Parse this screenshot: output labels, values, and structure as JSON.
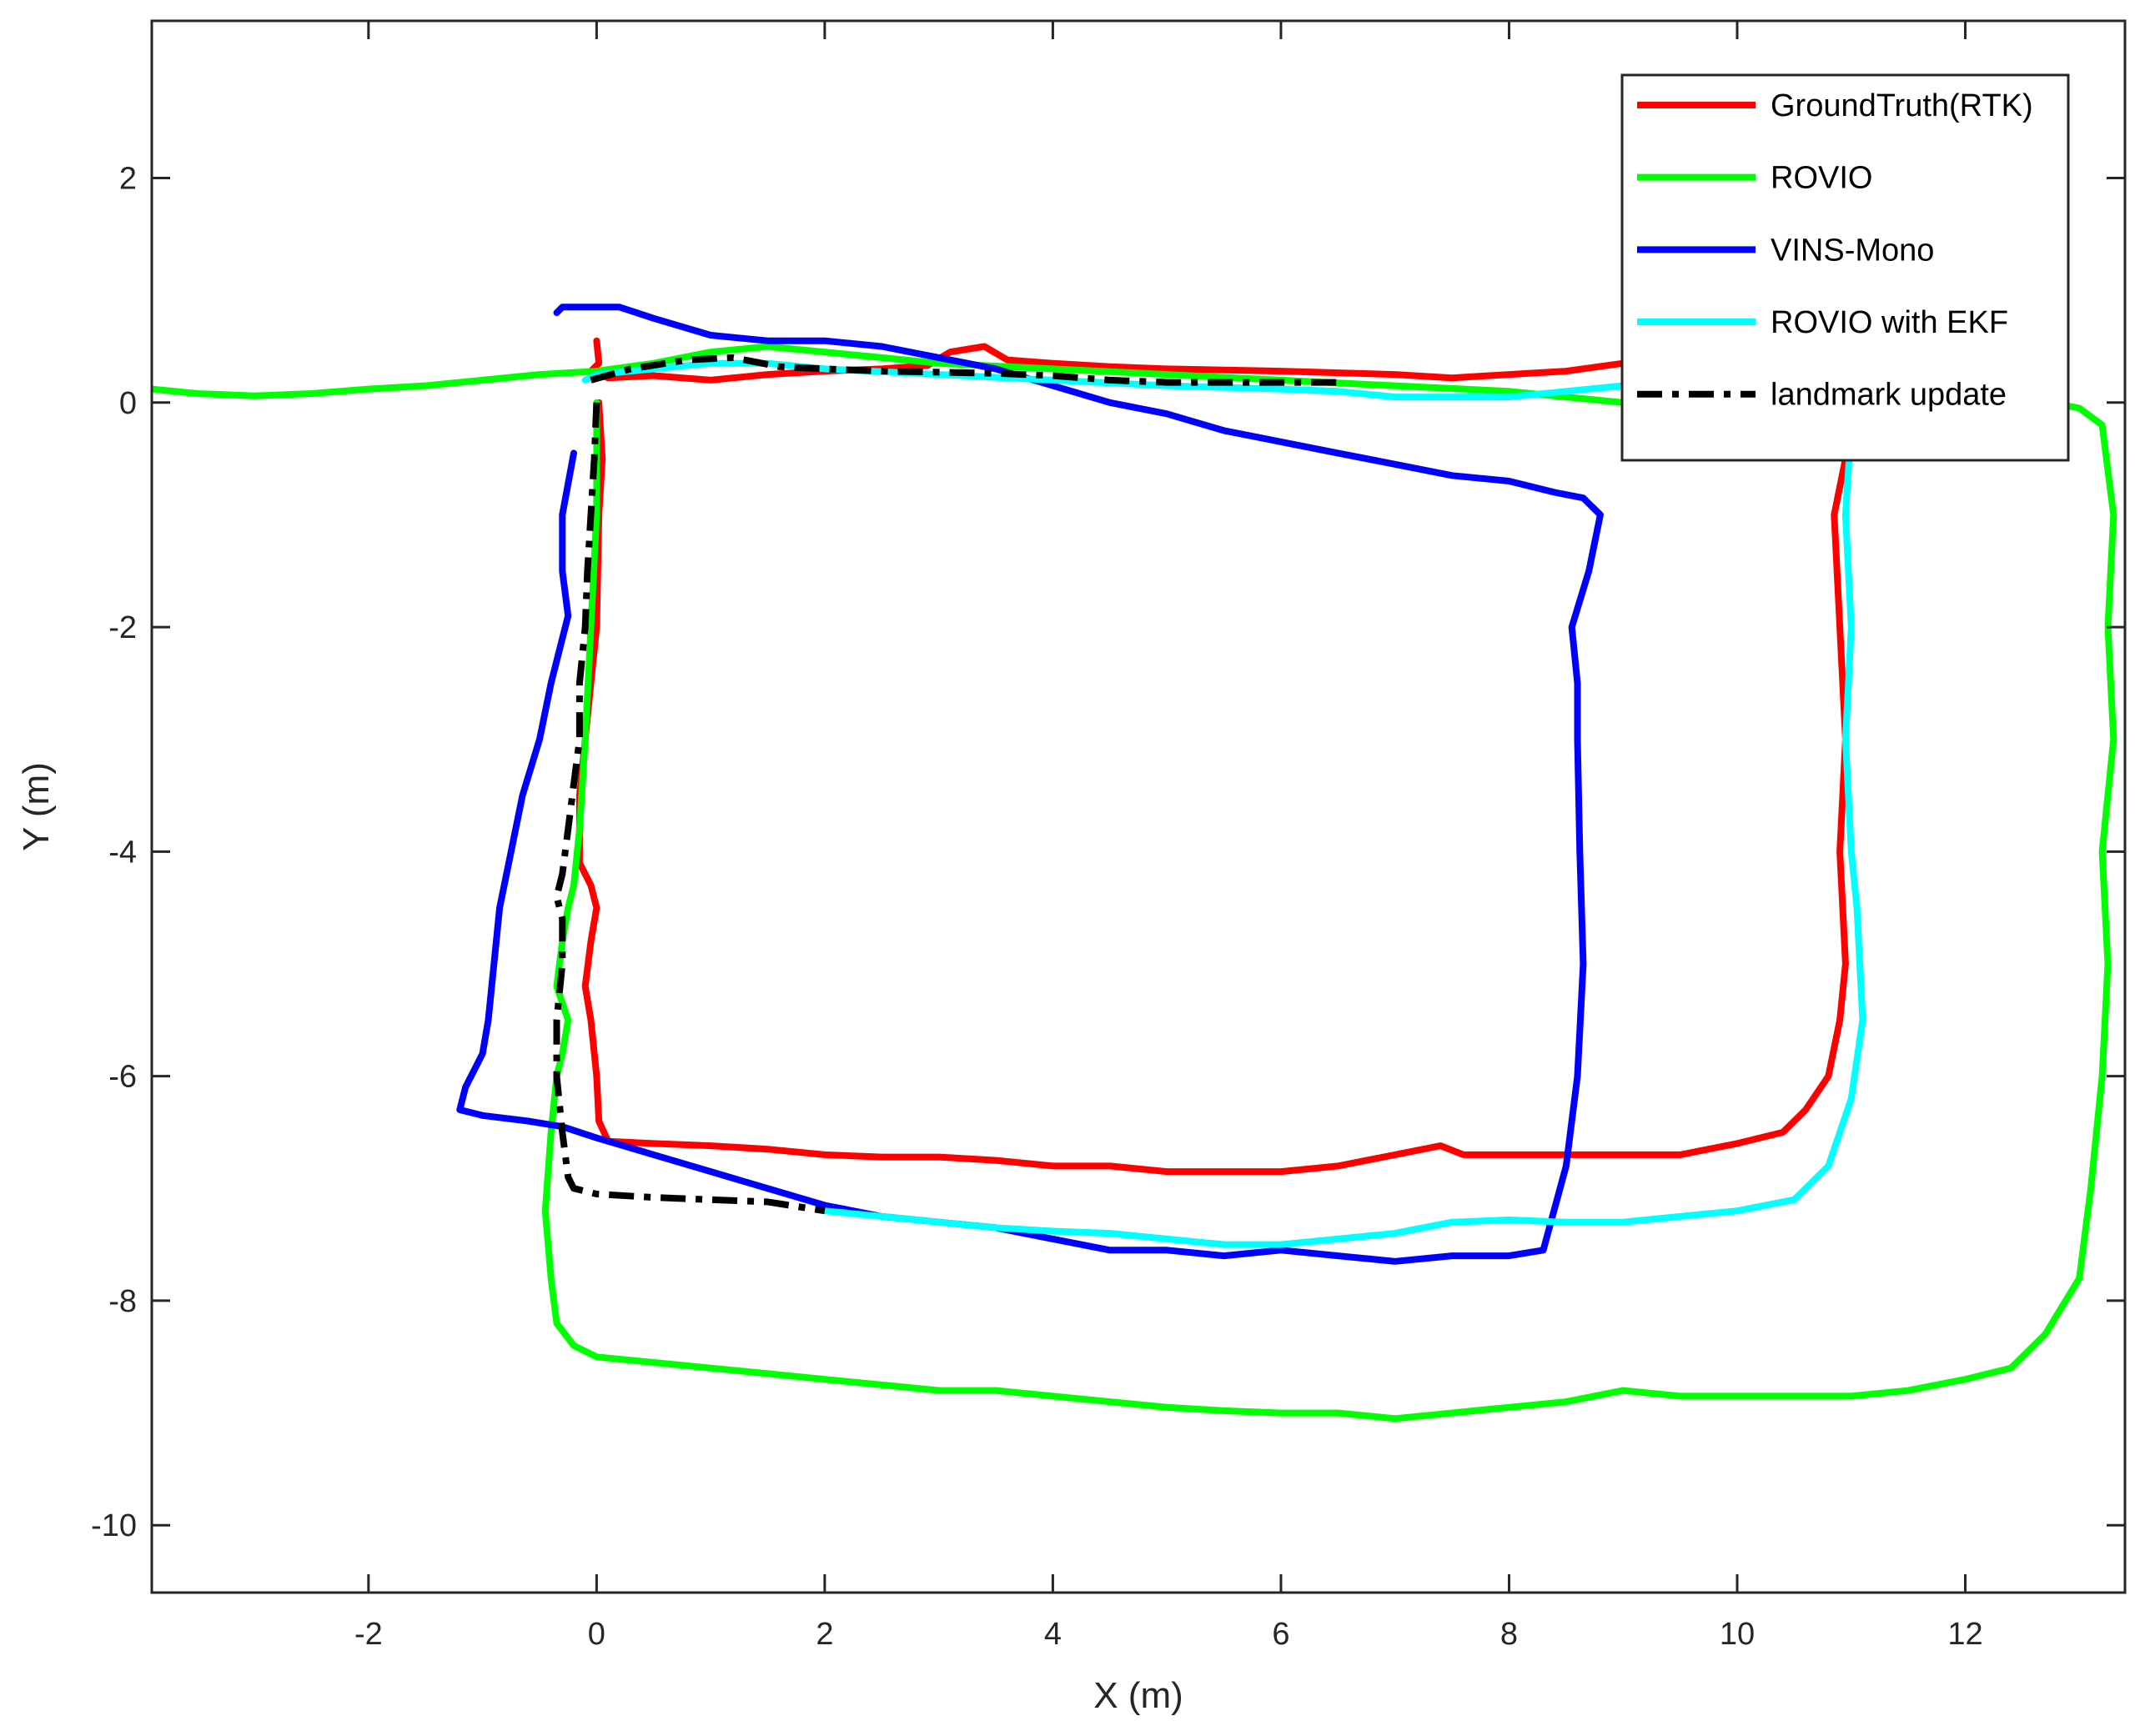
{
  "chart_data": {
    "type": "line",
    "title": "",
    "xlabel": "X (m)",
    "ylabel": "Y (m)",
    "xlim": [
      -3.9,
      13.4
    ],
    "ylim": [
      -10.6,
      3.4
    ],
    "xticks": [
      -2,
      0,
      2,
      4,
      6,
      8,
      10,
      12
    ],
    "yticks": [
      -10,
      -8,
      -6,
      -4,
      -2,
      0,
      2
    ],
    "grid": false,
    "legend_position": "top-right",
    "series": [
      {
        "name": "GroundTruth(RTK)",
        "color": "#ff0000",
        "style": "solid",
        "points": [
          [
            0,
            0.55
          ],
          [
            0.02,
            0.35
          ],
          [
            -0.05,
            0.28
          ],
          [
            0.1,
            0.22
          ],
          [
            0.5,
            0.24
          ],
          [
            1.0,
            0.2
          ],
          [
            1.5,
            0.25
          ],
          [
            2.0,
            0.28
          ],
          [
            2.5,
            0.3
          ],
          [
            2.9,
            0.33
          ],
          [
            3.1,
            0.45
          ],
          [
            3.4,
            0.5
          ],
          [
            3.6,
            0.38
          ],
          [
            4.0,
            0.35
          ],
          [
            4.5,
            0.32
          ],
          [
            5.0,
            0.3
          ],
          [
            6.0,
            0.28
          ],
          [
            7.0,
            0.25
          ],
          [
            7.5,
            0.22
          ],
          [
            8.0,
            0.25
          ],
          [
            8.5,
            0.28
          ],
          [
            9.0,
            0.35
          ],
          [
            9.5,
            0.35
          ],
          [
            10.0,
            0.35
          ],
          [
            10.5,
            0.28
          ],
          [
            10.8,
            0.22
          ],
          [
            10.9,
            0.1
          ],
          [
            10.95,
            -0.5
          ],
          [
            10.85,
            -1.0
          ],
          [
            10.9,
            -2.0
          ],
          [
            10.95,
            -3.0
          ],
          [
            10.9,
            -4.0
          ],
          [
            10.95,
            -5.0
          ],
          [
            10.9,
            -5.5
          ],
          [
            10.8,
            -6.0
          ],
          [
            10.6,
            -6.3
          ],
          [
            10.4,
            -6.5
          ],
          [
            10.0,
            -6.6
          ],
          [
            9.5,
            -6.7
          ],
          [
            9.0,
            -6.7
          ],
          [
            8.5,
            -6.7
          ],
          [
            8.0,
            -6.7
          ],
          [
            7.6,
            -6.7
          ],
          [
            7.4,
            -6.62
          ],
          [
            7.0,
            -6.7
          ],
          [
            6.5,
            -6.8
          ],
          [
            6.0,
            -6.85
          ],
          [
            5.5,
            -6.85
          ],
          [
            5.0,
            -6.85
          ],
          [
            4.5,
            -6.8
          ],
          [
            4.0,
            -6.8
          ],
          [
            3.5,
            -6.75
          ],
          [
            3.0,
            -6.72
          ],
          [
            2.5,
            -6.72
          ],
          [
            2.0,
            -6.7
          ],
          [
            1.5,
            -6.65
          ],
          [
            1.0,
            -6.62
          ],
          [
            0.5,
            -6.6
          ],
          [
            0.1,
            -6.58
          ],
          [
            0.02,
            -6.4
          ],
          [
            0,
            -6.0
          ],
          [
            -0.05,
            -5.5
          ],
          [
            -0.1,
            -5.2
          ],
          [
            -0.05,
            -4.8
          ],
          [
            0.0,
            -4.5
          ],
          [
            -0.05,
            -4.3
          ],
          [
            -0.15,
            -4.1
          ],
          [
            -0.15,
            -3.5
          ],
          [
            -0.1,
            -3.0
          ],
          [
            -0.05,
            -2.5
          ],
          [
            0,
            -2.0
          ],
          [
            0.02,
            -1.0
          ],
          [
            0.05,
            -0.5
          ],
          [
            0.02,
            0
          ]
        ]
      },
      {
        "name": "ROVIO",
        "color": "#00ff00",
        "style": "solid",
        "points": [
          [
            -3.9,
            0.12
          ],
          [
            -3.5,
            0.08
          ],
          [
            -3.0,
            0.06
          ],
          [
            -2.5,
            0.08
          ],
          [
            -2.0,
            0.12
          ],
          [
            -1.5,
            0.15
          ],
          [
            -1.0,
            0.2
          ],
          [
            -0.5,
            0.25
          ],
          [
            0,
            0.28
          ],
          [
            0.5,
            0.35
          ],
          [
            1.0,
            0.45
          ],
          [
            1.5,
            0.5
          ],
          [
            2.0,
            0.45
          ],
          [
            2.5,
            0.4
          ],
          [
            3.0,
            0.35
          ],
          [
            4.0,
            0.3
          ],
          [
            5.0,
            0.25
          ],
          [
            6.0,
            0.2
          ],
          [
            7.0,
            0.15
          ],
          [
            8.0,
            0.1
          ],
          [
            8.5,
            0.05
          ],
          [
            9.0,
            0.0
          ],
          [
            9.5,
            0.0
          ],
          [
            10.0,
            0.0
          ],
          [
            10.5,
            0.1
          ],
          [
            11.0,
            0.15
          ],
          [
            11.5,
            0.15
          ],
          [
            12.0,
            0.12
          ],
          [
            12.5,
            0.05
          ],
          [
            13.0,
            -0.05
          ],
          [
            13.2,
            -0.2
          ],
          [
            13.3,
            -1.0
          ],
          [
            13.25,
            -2.0
          ],
          [
            13.3,
            -3.0
          ],
          [
            13.2,
            -4.0
          ],
          [
            13.25,
            -5.0
          ],
          [
            13.2,
            -6.0
          ],
          [
            13.1,
            -7.0
          ],
          [
            13.0,
            -7.8
          ],
          [
            12.7,
            -8.3
          ],
          [
            12.4,
            -8.6
          ],
          [
            12.0,
            -8.7
          ],
          [
            11.5,
            -8.8
          ],
          [
            11.0,
            -8.85
          ],
          [
            10.0,
            -8.85
          ],
          [
            9.5,
            -8.85
          ],
          [
            9.0,
            -8.8
          ],
          [
            8.5,
            -8.9
          ],
          [
            8.0,
            -8.95
          ],
          [
            7.5,
            -9.0
          ],
          [
            7.0,
            -9.05
          ],
          [
            6.5,
            -9.0
          ],
          [
            6.0,
            -9.0
          ],
          [
            5.5,
            -8.98
          ],
          [
            5.0,
            -8.95
          ],
          [
            4.5,
            -8.9
          ],
          [
            4.0,
            -8.85
          ],
          [
            3.5,
            -8.8
          ],
          [
            3.0,
            -8.8
          ],
          [
            2.5,
            -8.75
          ],
          [
            2.0,
            -8.7
          ],
          [
            1.5,
            -8.65
          ],
          [
            1.0,
            -8.6
          ],
          [
            0.5,
            -8.55
          ],
          [
            0,
            -8.5
          ],
          [
            -0.2,
            -8.4
          ],
          [
            -0.35,
            -8.2
          ],
          [
            -0.4,
            -7.8
          ],
          [
            -0.45,
            -7.2
          ],
          [
            -0.4,
            -6.5
          ],
          [
            -0.35,
            -6.0
          ],
          [
            -0.3,
            -5.8
          ],
          [
            -0.25,
            -5.5
          ],
          [
            -0.35,
            -5.2
          ],
          [
            -0.3,
            -4.8
          ],
          [
            -0.25,
            -4.5
          ],
          [
            -0.2,
            -4.3
          ],
          [
            -0.15,
            -3.8
          ],
          [
            -0.1,
            -3.0
          ],
          [
            -0.05,
            -2.0
          ],
          [
            0.0,
            -1.0
          ],
          [
            0.0,
            0
          ]
        ]
      },
      {
        "name": "VINS-Mono",
        "color": "#0000ff",
        "style": "solid",
        "points": [
          [
            -0.2,
            -0.45
          ],
          [
            -0.3,
            -1.0
          ],
          [
            -0.3,
            -1.5
          ],
          [
            -0.25,
            -1.9
          ],
          [
            -0.4,
            -2.5
          ],
          [
            -0.5,
            -3.0
          ],
          [
            -0.65,
            -3.5
          ],
          [
            -0.75,
            -4.0
          ],
          [
            -0.85,
            -4.5
          ],
          [
            -0.9,
            -5.0
          ],
          [
            -0.95,
            -5.5
          ],
          [
            -1.0,
            -5.8
          ],
          [
            -1.15,
            -6.1
          ],
          [
            -1.2,
            -6.3
          ],
          [
            -1.0,
            -6.35
          ],
          [
            -0.6,
            -6.4
          ],
          [
            -0.3,
            -6.45
          ],
          [
            0,
            -6.55
          ],
          [
            0.5,
            -6.7
          ],
          [
            1.0,
            -6.85
          ],
          [
            1.5,
            -7.0
          ],
          [
            2.0,
            -7.15
          ],
          [
            2.5,
            -7.25
          ],
          [
            3.0,
            -7.3
          ],
          [
            3.5,
            -7.35
          ],
          [
            4.0,
            -7.45
          ],
          [
            4.5,
            -7.55
          ],
          [
            5.0,
            -7.55
          ],
          [
            5.5,
            -7.6
          ],
          [
            6.0,
            -7.55
          ],
          [
            6.5,
            -7.6
          ],
          [
            7.0,
            -7.65
          ],
          [
            7.5,
            -7.6
          ],
          [
            8.0,
            -7.6
          ],
          [
            8.3,
            -7.55
          ],
          [
            8.5,
            -6.8
          ],
          [
            8.6,
            -6.0
          ],
          [
            8.65,
            -5.0
          ],
          [
            8.62,
            -4.0
          ],
          [
            8.6,
            -3.0
          ],
          [
            8.6,
            -2.5
          ],
          [
            8.55,
            -2.0
          ],
          [
            8.7,
            -1.5
          ],
          [
            8.8,
            -1.0
          ],
          [
            8.65,
            -0.85
          ],
          [
            8.4,
            -0.8
          ],
          [
            8.0,
            -0.7
          ],
          [
            7.5,
            -0.65
          ],
          [
            7.0,
            -0.55
          ],
          [
            6.5,
            -0.45
          ],
          [
            6.0,
            -0.35
          ],
          [
            5.5,
            -0.25
          ],
          [
            5.0,
            -0.1
          ],
          [
            4.5,
            0.0
          ],
          [
            4.0,
            0.15
          ],
          [
            3.5,
            0.3
          ],
          [
            3.0,
            0.4
          ],
          [
            2.5,
            0.5
          ],
          [
            2.0,
            0.55
          ],
          [
            1.5,
            0.55
          ],
          [
            1.0,
            0.6
          ],
          [
            0.5,
            0.75
          ],
          [
            0.2,
            0.85
          ],
          [
            0,
            0.85
          ],
          [
            -0.3,
            0.85
          ],
          [
            -0.35,
            0.8
          ]
        ]
      },
      {
        "name": "ROVIO with EKF",
        "color": "#00ffff",
        "style": "solid",
        "points": [
          [
            2.0,
            -7.2
          ],
          [
            2.5,
            -7.25
          ],
          [
            3.0,
            -7.3
          ],
          [
            3.5,
            -7.35
          ],
          [
            4.0,
            -7.38
          ],
          [
            4.5,
            -7.4
          ],
          [
            5.0,
            -7.45
          ],
          [
            5.5,
            -7.5
          ],
          [
            6.0,
            -7.5
          ],
          [
            6.5,
            -7.45
          ],
          [
            7.0,
            -7.4
          ],
          [
            7.5,
            -7.3
          ],
          [
            8.0,
            -7.28
          ],
          [
            8.5,
            -7.3
          ],
          [
            9.0,
            -7.3
          ],
          [
            9.5,
            -7.25
          ],
          [
            10.0,
            -7.2
          ],
          [
            10.5,
            -7.1
          ],
          [
            10.8,
            -6.8
          ],
          [
            11.0,
            -6.2
          ],
          [
            11.1,
            -5.5
          ],
          [
            11.05,
            -4.5
          ],
          [
            11.0,
            -4.0
          ],
          [
            10.95,
            -3.0
          ],
          [
            11.0,
            -2.0
          ],
          [
            10.95,
            -1.0
          ],
          [
            11.0,
            -0.2
          ],
          [
            10.9,
            0.15
          ],
          [
            10.5,
            0.2
          ],
          [
            10.0,
            0.2
          ],
          [
            9.5,
            0.2
          ],
          [
            9.0,
            0.15
          ],
          [
            8.5,
            0.1
          ],
          [
            8.0,
            0.05
          ],
          [
            7.0,
            0.05
          ],
          [
            6.5,
            0.1
          ],
          [
            6.0,
            0.12
          ],
          [
            5.0,
            0.15
          ],
          [
            4.0,
            0.2
          ],
          [
            3.0,
            0.25
          ],
          [
            2.0,
            0.3
          ],
          [
            1.5,
            0.35
          ],
          [
            1.0,
            0.35
          ],
          [
            0.5,
            0.3
          ],
          [
            0,
            0.25
          ],
          [
            -0.1,
            0.2
          ]
        ]
      },
      {
        "name": "landmark update",
        "color": "#000000",
        "style": "dashdot",
        "points": [
          [
            0.0,
            0.0
          ],
          [
            -0.02,
            -0.5
          ],
          [
            -0.05,
            -1.0
          ],
          [
            -0.08,
            -1.5
          ],
          [
            -0.1,
            -2.0
          ],
          [
            -0.15,
            -2.5
          ],
          [
            -0.15,
            -3.0
          ],
          [
            -0.2,
            -3.4
          ],
          [
            -0.25,
            -3.8
          ],
          [
            -0.3,
            -4.2
          ],
          [
            -0.35,
            -4.4
          ],
          [
            -0.3,
            -4.6
          ],
          [
            -0.3,
            -5.0
          ],
          [
            -0.35,
            -5.5
          ],
          [
            -0.35,
            -6.0
          ],
          [
            -0.3,
            -6.5
          ],
          [
            -0.25,
            -6.9
          ],
          [
            -0.2,
            -7.0
          ],
          [
            0,
            -7.05
          ],
          [
            0.5,
            -7.08
          ],
          [
            1.0,
            -7.1
          ],
          [
            1.5,
            -7.12
          ],
          [
            2.0,
            -7.2
          ]
        ]
      },
      {
        "name": "landmark update (top)",
        "color": "#000000",
        "style": "dashdot",
        "legend": false,
        "points": [
          [
            -0.05,
            0.2
          ],
          [
            0.3,
            0.3
          ],
          [
            0.8,
            0.38
          ],
          [
            1.2,
            0.4
          ],
          [
            1.6,
            0.32
          ],
          [
            2.0,
            0.3
          ],
          [
            2.5,
            0.28
          ],
          [
            3.0,
            0.27
          ],
          [
            3.5,
            0.26
          ],
          [
            4.0,
            0.24
          ],
          [
            4.5,
            0.2
          ],
          [
            5.0,
            0.18
          ],
          [
            5.5,
            0.18
          ],
          [
            6.0,
            0.18
          ],
          [
            6.5,
            0.18
          ]
        ]
      }
    ]
  }
}
